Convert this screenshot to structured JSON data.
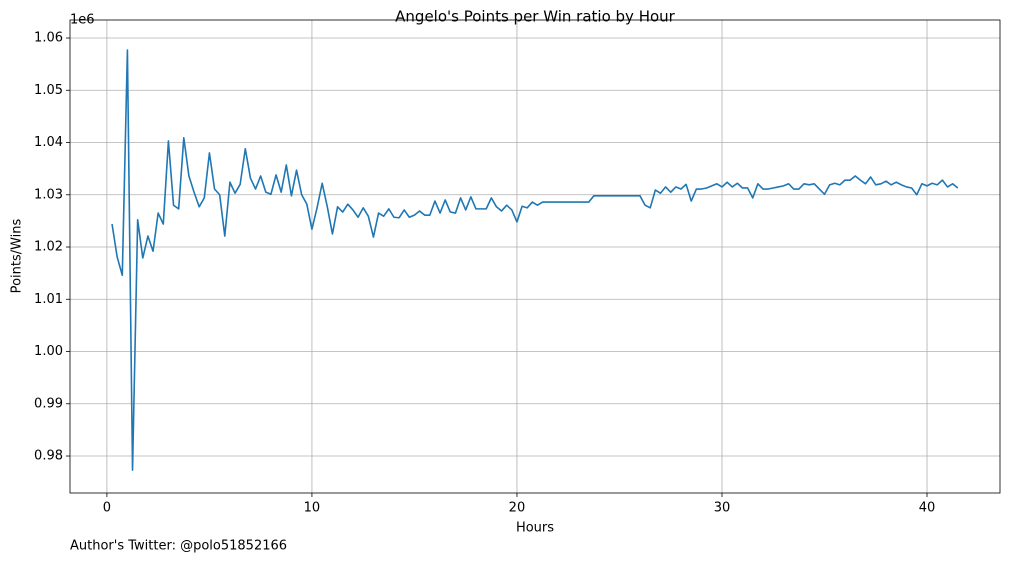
{
  "chart_data": {
    "type": "line",
    "title": "Angelo's Points per Win ratio by Hour",
    "xlabel": "Hours",
    "ylabel": "Points/Wins",
    "y_offset_label": "1e6",
    "footnote": "Author's Twitter: @polo51852166",
    "color": "#1f77b4",
    "grid": true,
    "xlim": [
      -1.8,
      43.56
    ],
    "ylim": [
      0.97292,
      1.06345
    ],
    "xticks": [
      0,
      10,
      20,
      30,
      40
    ],
    "yticks": [
      0.98,
      0.99,
      {
        "value": 1,
        "label": "1.00"
      },
      1.01,
      1.02,
      1.03,
      1.04,
      1.05,
      1.06
    ],
    "x": [
      0.25,
      0.5,
      0.75,
      1,
      1.25,
      1.5,
      1.75,
      2,
      2.25,
      2.5,
      2.75,
      3,
      3.25,
      3.5,
      3.75,
      4,
      4.25,
      4.5,
      4.75,
      5,
      5.25,
      5.5,
      5.75,
      6,
      6.25,
      6.5,
      6.75,
      7,
      7.25,
      7.5,
      7.75,
      8,
      8.25,
      8.5,
      8.75,
      9,
      9.25,
      9.5,
      9.75,
      10,
      10.25,
      10.5,
      10.75,
      11,
      11.25,
      11.5,
      11.75,
      12,
      12.25,
      12.5,
      12.75,
      13,
      13.25,
      13.5,
      13.75,
      14,
      14.25,
      14.5,
      14.75,
      15,
      15.25,
      15.5,
      15.75,
      16,
      16.25,
      16.5,
      16.75,
      17,
      17.25,
      17.5,
      17.75,
      18,
      18.25,
      18.5,
      18.75,
      19,
      19.25,
      19.5,
      19.75,
      20,
      20.25,
      20.5,
      20.75,
      21,
      21.25,
      21.5,
      21.75,
      22,
      22.25,
      22.5,
      22.75,
      23,
      23.25,
      23.5,
      23.75,
      24,
      24.25,
      24.5,
      24.75,
      25,
      25.25,
      25.5,
      25.75,
      26,
      26.25,
      26.5,
      26.75,
      27,
      27.25,
      27.5,
      27.75,
      28,
      28.25,
      28.5,
      28.75,
      29,
      29.25,
      29.5,
      29.75,
      30,
      30.25,
      30.5,
      30.75,
      31,
      31.25,
      31.5,
      31.75,
      32,
      32.25,
      32.5,
      32.75,
      33,
      33.25,
      33.5,
      33.75,
      34,
      34.25,
      34.5,
      34.75,
      35,
      35.25,
      35.5,
      35.75,
      36,
      36.25,
      36.5,
      36.75,
      37,
      37.25,
      37.5,
      37.75,
      38,
      38.25,
      38.5,
      38.75,
      39,
      39.25,
      39.5,
      39.75,
      40,
      40.25,
      40.5,
      40.75,
      41,
      41.25,
      41.5
    ],
    "values": [
      1.0244,
      1.0181,
      1.0146,
      1.0577,
      0.9773,
      1.0252,
      1.0179,
      1.0221,
      1.0192,
      1.0265,
      1.0244,
      1.0403,
      1.028,
      1.0273,
      1.0409,
      1.0336,
      1.0305,
      1.0277,
      1.0294,
      1.038,
      1.0311,
      1.03,
      1.0221,
      1.0324,
      1.0303,
      1.032,
      1.0388,
      1.0332,
      1.0311,
      1.0336,
      1.0305,
      1.0301,
      1.0338,
      1.0305,
      1.0357,
      1.0298,
      1.0347,
      1.03,
      1.0282,
      1.0234,
      1.0275,
      1.0322,
      1.0277,
      1.0225,
      1.0277,
      1.0267,
      1.0282,
      1.0271,
      1.0257,
      1.0275,
      1.0259,
      1.0219,
      1.0265,
      1.0259,
      1.0273,
      1.0257,
      1.0256,
      1.0271,
      1.0257,
      1.0261,
      1.0269,
      1.0261,
      1.0261,
      1.0288,
      1.0265,
      1.029,
      1.0267,
      1.0265,
      1.0294,
      1.0271,
      1.0296,
      1.0273,
      1.0273,
      1.0273,
      1.0294,
      1.0277,
      1.0269,
      1.028,
      1.0271,
      1.0248,
      1.0278,
      1.0275,
      1.0286,
      1.028,
      1.0286,
      1.0286,
      1.0286,
      1.0286,
      1.0286,
      1.0286,
      1.0286,
      1.0286,
      1.0286,
      1.0286,
      1.0298,
      1.0298,
      1.0298,
      1.0298,
      1.0298,
      1.0298,
      1.0298,
      1.0298,
      1.0298,
      1.0298,
      1.028,
      1.0275,
      1.0309,
      1.0303,
      1.0315,
      1.0305,
      1.0315,
      1.0311,
      1.032,
      1.0288,
      1.0311,
      1.0311,
      1.0313,
      1.0317,
      1.0321,
      1.0315,
      1.0324,
      1.0315,
      1.0322,
      1.0313,
      1.0313,
      1.0294,
      1.0321,
      1.0311,
      1.0311,
      1.0313,
      1.0315,
      1.0317,
      1.0321,
      1.0311,
      1.0311,
      1.0321,
      1.0319,
      1.0321,
      1.0311,
      1.0301,
      1.0319,
      1.0322,
      1.0319,
      1.0328,
      1.0328,
      1.0336,
      1.0328,
      1.0321,
      1.0334,
      1.0319,
      1.0321,
      1.0326,
      1.0319,
      1.0324,
      1.0319,
      1.0315,
      1.0313,
      1.03,
      1.0321,
      1.0317,
      1.0322,
      1.0319,
      1.0328,
      1.0315,
      1.0321,
      1.0313
    ]
  }
}
